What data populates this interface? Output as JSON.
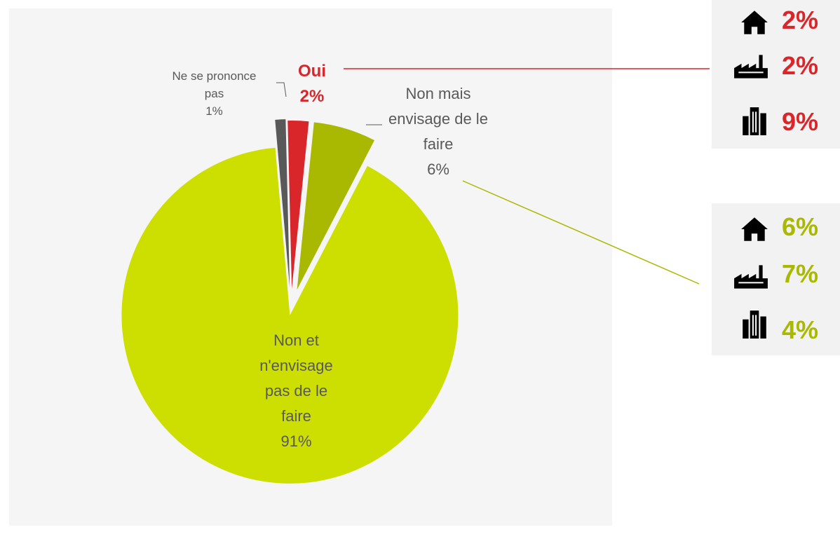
{
  "chart_data": {
    "type": "pie",
    "categories": [
      "Ne se prononce pas",
      "Oui",
      "Non mais envisage de le faire",
      "Non et n'envisage pas de le faire"
    ],
    "values": [
      1,
      2,
      6,
      91
    ],
    "value_labels": [
      "1%",
      "2%",
      "6%",
      "91%"
    ],
    "colors": [
      "#595959",
      "#d9262b",
      "#a9b800",
      "#cddf00"
    ],
    "breakdowns": [
      {
        "values": [
          2,
          2,
          9
        ],
        "value_labels": [
          "2%",
          "2%",
          "9%"
        ],
        "color": "#d9262b"
      },
      {
        "values": [
          6,
          7,
          4
        ],
        "value_labels": [
          "6%",
          "7%",
          "4%"
        ],
        "color": "#a9b800"
      }
    ]
  }
}
